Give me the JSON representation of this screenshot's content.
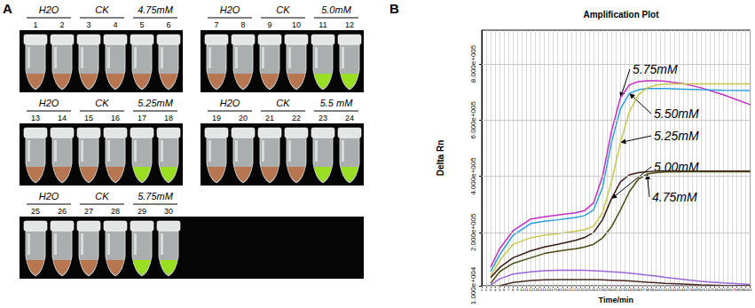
{
  "panel_labels": [
    "A",
    "B"
  ],
  "panel_a": {
    "rows": [
      [
        [
          {
            "label": "H2O",
            "tubes": [
              1,
              2
            ],
            "color": "#b87650"
          },
          {
            "label": "CK",
            "tubes": [
              3,
              4
            ],
            "color": "#b87650"
          },
          {
            "label": "4.75mM",
            "tubes": [
              5,
              6
            ],
            "color": "#b87650"
          }
        ],
        [
          {
            "label": "H2O",
            "tubes": [
              7,
              8
            ],
            "color": "#b87650"
          },
          {
            "label": "CK",
            "tubes": [
              9,
              10
            ],
            "color": "#b87650"
          },
          {
            "label": "5.0mM",
            "tubes": [
              11,
              12
            ],
            "color": "#9ade22"
          }
        ]
      ],
      [
        [
          {
            "label": "H2O",
            "tubes": [
              13,
              14
            ],
            "color": "#b87650"
          },
          {
            "label": "CK",
            "tubes": [
              15,
              16
            ],
            "color": "#b87650"
          },
          {
            "label": "5.25mM",
            "tubes": [
              17,
              18
            ],
            "color": "#9ade22"
          }
        ],
        [
          {
            "label": "H2O",
            "tubes": [
              19,
              20
            ],
            "color": "#b87650"
          },
          {
            "label": "CK",
            "tubes": [
              21,
              22
            ],
            "color": "#b87650"
          },
          {
            "label": "5.5 mM",
            "tubes": [
              23,
              24
            ],
            "color": "#9ade22"
          }
        ]
      ],
      [
        [
          {
            "label": "H2O",
            "tubes": [
              25,
              26
            ],
            "color": "#b87650"
          },
          {
            "label": "CK",
            "tubes": [
              27,
              28
            ],
            "color": "#b87650"
          },
          {
            "label": "5.75mM",
            "tubes": [
              29,
              30
            ],
            "color": "#9ade22"
          }
        ]
      ]
    ]
  },
  "chart_data": {
    "type": "line",
    "title": "Amplification Plot",
    "x_label": "Time/min",
    "y_label": "Delta Rn",
    "x": [
      3,
      5,
      8,
      12,
      15,
      18,
      20,
      22,
      24,
      26,
      28,
      30,
      32,
      34,
      36,
      38,
      40,
      42,
      46,
      50,
      55,
      61
    ],
    "series": [
      {
        "name": "5.75mM",
        "color": "#c22fc2",
        "values": [
          77000,
          142000,
          206000,
          248000,
          256000,
          262000,
          266000,
          270000,
          278000,
          305000,
          400000,
          560000,
          680000,
          725000,
          737000,
          740000,
          740000,
          738000,
          730000,
          715000,
          690000,
          655000
        ]
      },
      {
        "name": "5.50mM",
        "color": "#2aa0dc",
        "values": [
          61000,
          120000,
          190000,
          232000,
          240000,
          245000,
          249000,
          253000,
          260000,
          280000,
          360000,
          520000,
          640000,
          695000,
          708000,
          712000,
          712000,
          712000,
          710000,
          708000,
          706000,
          705000
        ]
      },
      {
        "name": "5.25mM",
        "color": "#c6c84a",
        "values": [
          45000,
          100000,
          158000,
          181000,
          190000,
          196000,
          200000,
          204000,
          210000,
          222000,
          270000,
          380000,
          520000,
          630000,
          690000,
          715000,
          725000,
          728000,
          729000,
          729000,
          729000,
          729000
        ]
      },
      {
        "name": "5.00mM",
        "color": "#3a1a12",
        "values": [
          39000,
          75000,
          110000,
          135000,
          148000,
          158000,
          165000,
          172000,
          182000,
          200000,
          245000,
          320000,
          380000,
          405000,
          413000,
          416000,
          418000,
          418000,
          418000,
          418000,
          418000,
          418000
        ]
      },
      {
        "name": "4.75mM",
        "color": "#4a4a12",
        "values": [
          19000,
          60000,
          90000,
          110000,
          125000,
          133000,
          138000,
          142000,
          148000,
          158000,
          180000,
          220000,
          280000,
          345000,
          390000,
          408000,
          413000,
          415000,
          416000,
          416000,
          416000,
          416000
        ]
      },
      {
        "color": "#9a66d8",
        "values": [
          13000,
          35000,
          52000,
          60000,
          64000,
          65000,
          65000,
          65000,
          65000,
          64000,
          62000,
          60000,
          58000,
          55000,
          52000,
          48000,
          45000,
          40000,
          33000,
          26000,
          20000,
          15000
        ]
      },
      {
        "color": "#4a2a20",
        "values": [
          null,
          10000,
          22000,
          29000,
          31000,
          32000,
          32000,
          32000,
          32000,
          32000,
          31000,
          30000,
          29000,
          27000,
          25000,
          23000,
          21000,
          19000,
          16000,
          13000,
          11000,
          10000
        ]
      }
    ],
    "annotations": [
      "5.75mM",
      "5.50mM",
      "5.25mM",
      "5.00mM",
      "4.75mM"
    ],
    "xlim": [
      1,
      61
    ],
    "xticks": [
      1,
      2,
      3,
      4,
      5,
      6,
      7,
      8,
      9,
      10,
      11,
      12,
      13,
      14,
      15,
      16,
      17,
      18,
      19,
      20,
      21,
      22,
      23,
      24,
      25,
      26,
      27,
      28,
      29,
      30,
      31,
      32,
      33,
      34,
      35,
      36,
      37,
      38,
      39,
      40,
      41,
      42,
      43,
      44,
      45,
      46,
      47,
      48,
      49,
      50,
      51,
      52,
      53,
      54,
      55,
      56,
      57,
      58,
      59,
      60,
      61
    ],
    "ylim": [
      10000,
      920000
    ],
    "yticks": [
      {
        "value": 10000,
        "label": "1.000e+004"
      },
      {
        "value": 200000,
        "label": "2.000e+005"
      },
      {
        "value": 400000,
        "label": "4.000e+005"
      },
      {
        "value": 600000,
        "label": "6.000e+005"
      },
      {
        "value": 800000,
        "label": "8.000e+005"
      }
    ],
    "grid": true
  }
}
